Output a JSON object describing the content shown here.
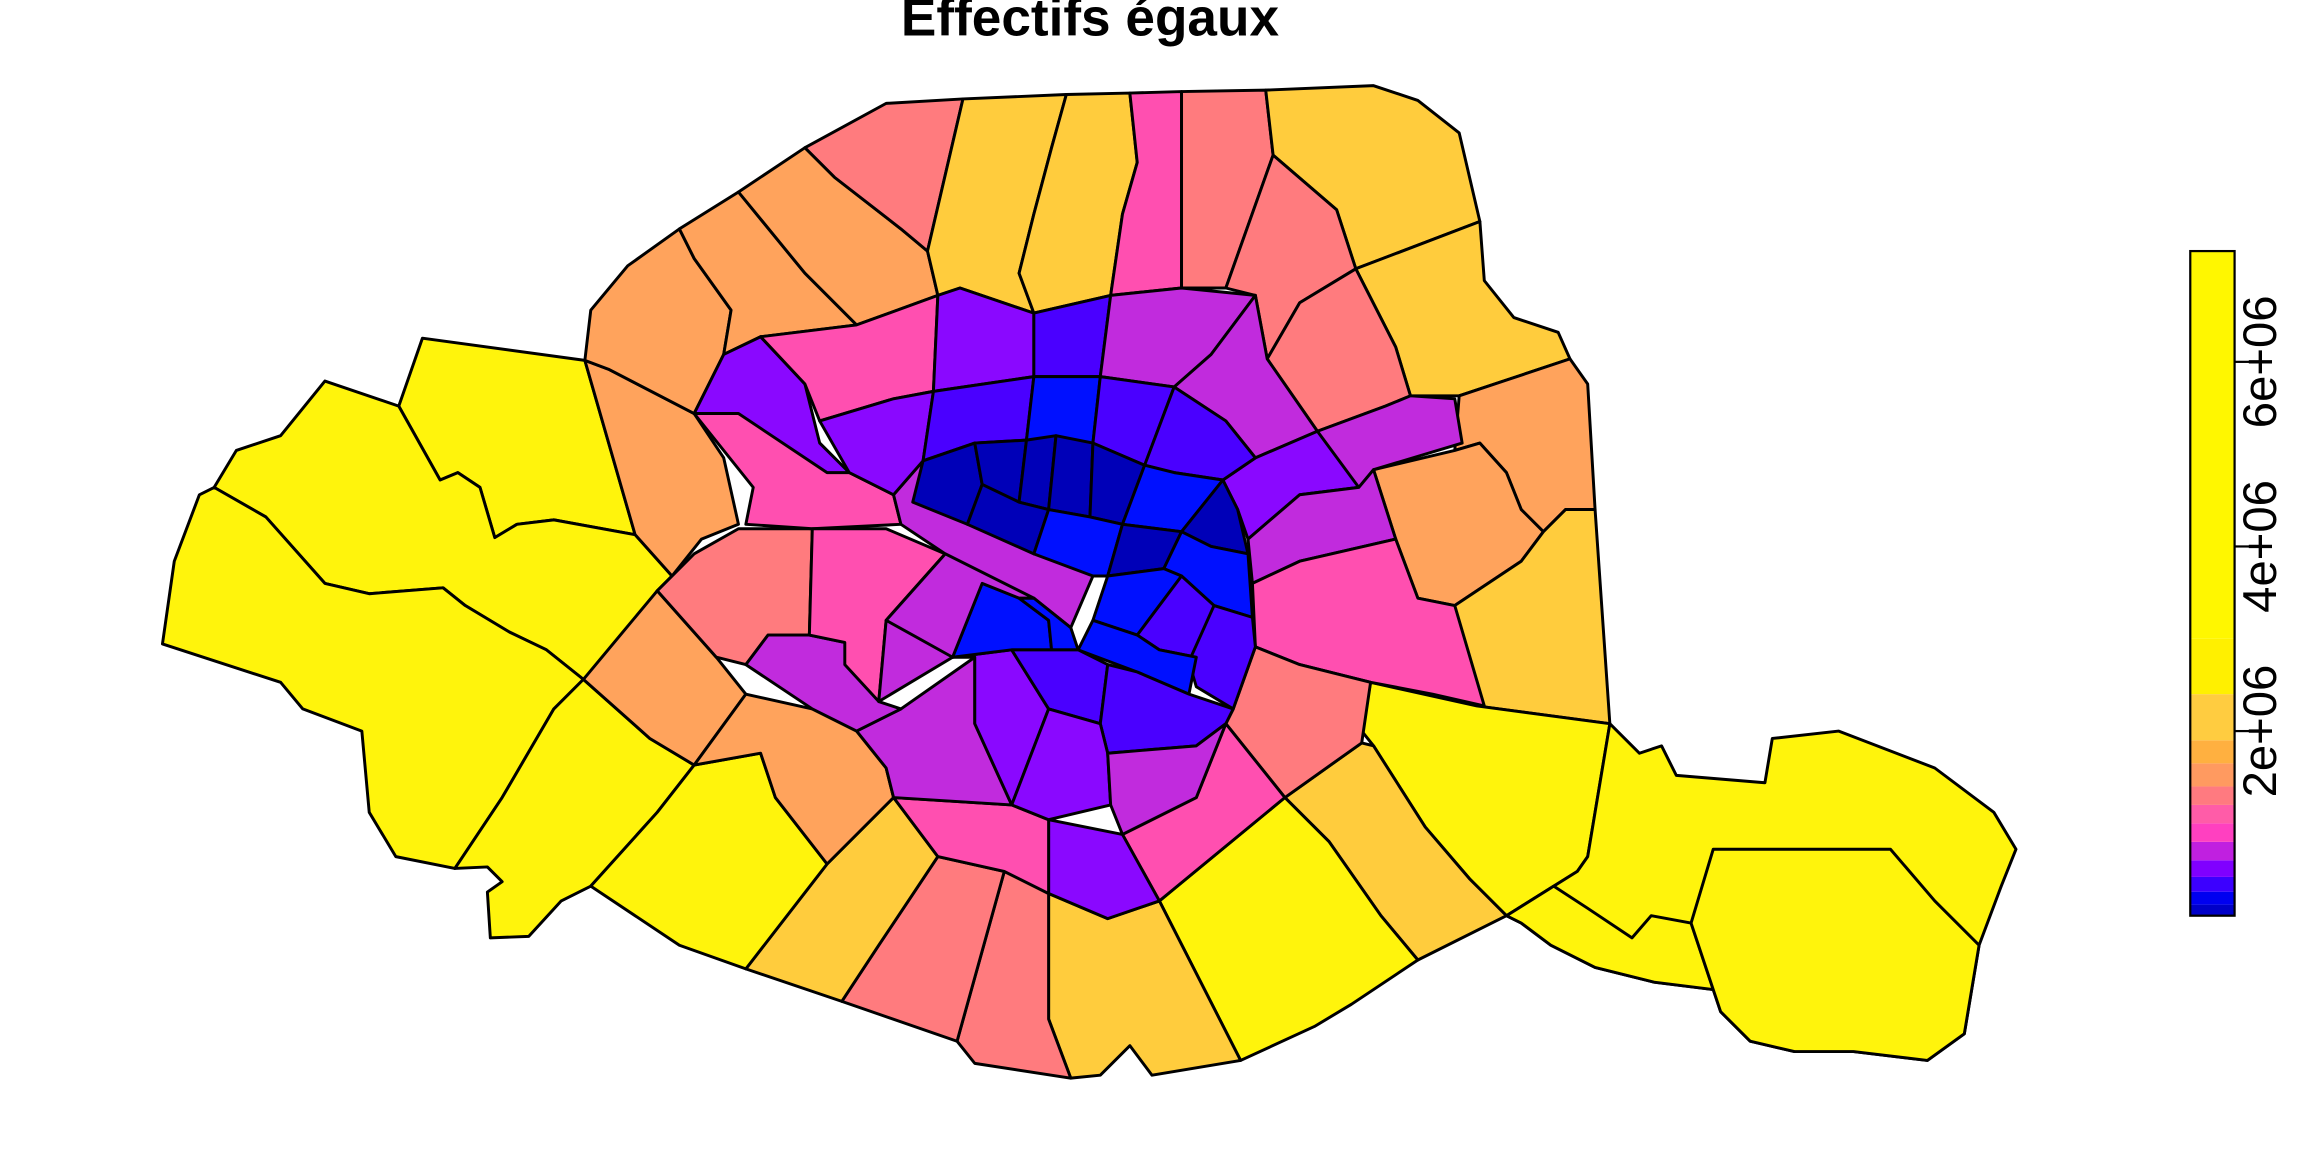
{
  "title": "Effectifs égaux",
  "legend": {
    "breaks": [
      0,
      120000,
      260000,
      420000,
      600000,
      800000,
      1000000,
      1200000,
      1400000,
      1650000,
      1900000,
      2400000,
      3000000,
      7200000
    ],
    "colors": [
      "#0000C8",
      "#0000F0",
      "#3C00FF",
      "#8000FF",
      "#C020E0",
      "#FF40C0",
      "#FF5CA8",
      "#FF7A80",
      "#FF9A60",
      "#FFB040",
      "#FFCC40",
      "#FFF000",
      "#FFF700"
    ],
    "ticks": [
      {
        "value": 2000000,
        "label": "2e+06"
      },
      {
        "value": 4000000,
        "label": "4e+06"
      },
      {
        "value": 6000000,
        "label": "6e+06"
      }
    ],
    "range": [
      0,
      7000000
    ]
  },
  "regions": {
    "yellow": "#FFF40C",
    "gold": "#FFCC3D",
    "orange": "#FFA35C",
    "salmon": "#FF7B7E",
    "pink": "#FF4FB0",
    "magenta": "#C12BDD",
    "violet": "#8A08FF",
    "indigo": "#4A00FF",
    "blue": "#0010FF",
    "navy": "#0000B8"
  }
}
